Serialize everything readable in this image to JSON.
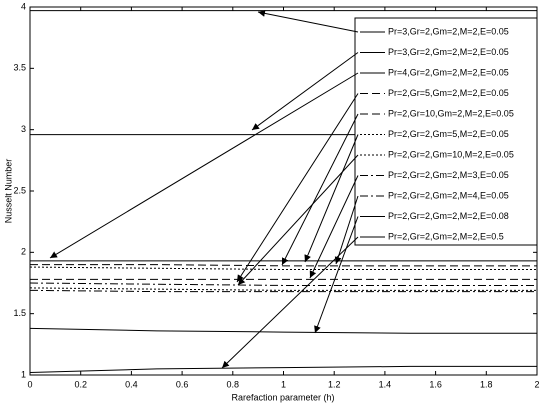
{
  "chart_data": {
    "type": "line",
    "xlabel": "Rarefaction parameter (h)",
    "ylabel": "Nusselt Number",
    "x": [
      0,
      0.5,
      1,
      1.5,
      2
    ],
    "xlim": [
      0,
      2
    ],
    "xticks": [
      0,
      0.2,
      0.4,
      0.6,
      0.8,
      1,
      1.2,
      1.4,
      1.6,
      1.8,
      2
    ],
    "ylim": [
      1,
      4
    ],
    "yticks": [
      1,
      1.5,
      2,
      2.5,
      3,
      3.5,
      4
    ],
    "legend": "upper right",
    "series": [
      {
        "name": "Pr=3,Gr=2,Gm=2,M=2,E=0.05",
        "color": "#000000",
        "linestyle": "solid",
        "values": [
          3.97,
          3.97,
          3.97,
          3.97,
          3.97
        ]
      },
      {
        "name": "Pr=3,Gr=2,Gm=2,M=2,E=0.05",
        "color": "#000000",
        "linestyle": "solid",
        "values": [
          2.96,
          2.96,
          2.96,
          2.96,
          2.96
        ]
      },
      {
        "name": "Pr=4,Gr=2,Gm=2,M=2,E=0.05",
        "color": "#000000",
        "linestyle": "solid",
        "values": [
          1.93,
          1.93,
          1.93,
          1.93,
          1.93
        ]
      },
      {
        "name": "Pr=2,Gr=5,Gm=2,M=2,E=0.05",
        "color": "#000000",
        "linestyle": "dashed",
        "values": [
          1.9,
          1.9,
          1.89,
          1.89,
          1.89
        ]
      },
      {
        "name": "Pr=2,Gr=10,Gm=2,M=2,E=0.05",
        "color": "#000000",
        "linestyle": "dashed",
        "values": [
          1.78,
          1.78,
          1.78,
          1.78,
          1.78
        ]
      },
      {
        "name": "Pr=2,Gr=2,Gm=5,M=2,E=0.05",
        "color": "#000000",
        "linestyle": "dotted",
        "values": [
          1.88,
          1.87,
          1.86,
          1.86,
          1.86
        ]
      },
      {
        "name": "Pr=2,Gr=2,Gm=10,M=2,E=0.05",
        "color": "#000000",
        "linestyle": "dotted",
        "values": [
          1.71,
          1.7,
          1.69,
          1.69,
          1.69
        ]
      },
      {
        "name": "Pr=2,Gr=2,Gm=2,M=3,E=0.05",
        "color": "#000000",
        "linestyle": "dashdot",
        "values": [
          1.75,
          1.74,
          1.73,
          1.73,
          1.73
        ]
      },
      {
        "name": "Pr=2,Gr=2,Gm=2,M=4,E=0.05",
        "color": "#000000",
        "linestyle": "dashdot",
        "values": [
          1.69,
          1.68,
          1.68,
          1.68,
          1.68
        ]
      },
      {
        "name": "Pr=2,Gr=2,Gm=2,M=2,E=0.08",
        "color": "#000000",
        "linestyle": "solid",
        "values": [
          1.38,
          1.36,
          1.35,
          1.34,
          1.34
        ]
      },
      {
        "name": "Pr=2,Gr=2,Gm=2,M=2,E=0.5",
        "color": "#000000",
        "linestyle": "solid",
        "values": [
          1.02,
          1.05,
          1.06,
          1.07,
          1.07
        ]
      }
    ]
  }
}
